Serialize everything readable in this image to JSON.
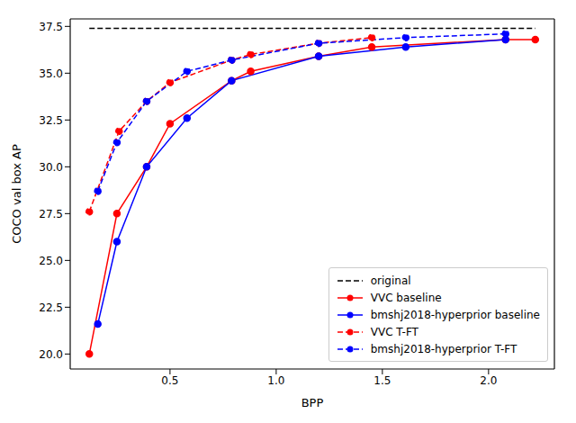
{
  "chart_data": {
    "type": "line",
    "x_label": "BPP",
    "y_label": "COCO val box AP",
    "xlim": [
      0.03,
      2.31
    ],
    "ylim": [
      19.2,
      37.9
    ],
    "xticks": [
      0.5,
      {
        "value": 1,
        "label": "1.0"
      },
      1.5,
      {
        "value": 2,
        "label": "2.0"
      }
    ],
    "yticks": [
      {
        "value": 20,
        "label": "20.0"
      },
      22.5,
      {
        "value": 25,
        "label": "25.0"
      },
      27.5,
      {
        "value": 30,
        "label": "30.0"
      },
      32.5,
      {
        "value": 35,
        "label": "35.0"
      },
      37.5
    ],
    "grid": "x",
    "legend": "lower right",
    "series": [
      {
        "name": "original",
        "color": "#000000",
        "line_style": "dashed",
        "marker": "none",
        "x": [
          0.12,
          2.22
        ],
        "values": [
          37.4,
          37.4
        ]
      },
      {
        "name": "VVC baseline",
        "color": "#ff0000",
        "line_style": "solid",
        "marker": "o",
        "x": [
          0.12,
          0.25,
          0.39,
          0.5,
          0.79,
          0.88,
          1.2,
          1.45,
          2.08,
          2.22
        ],
        "values": [
          20.0,
          27.5,
          30.0,
          32.3,
          34.6,
          35.1,
          35.9,
          36.4,
          36.8,
          36.8
        ]
      },
      {
        "name": "bmshj2018-hyperprior baseline",
        "color": "#0000ff",
        "line_style": "solid",
        "marker": "o",
        "x": [
          0.16,
          0.25,
          0.39,
          0.58,
          0.79,
          1.2,
          1.61,
          2.08
        ],
        "values": [
          21.6,
          26.0,
          30.0,
          32.6,
          34.6,
          35.9,
          36.4,
          36.8
        ]
      },
      {
        "name": "VVC T-FT",
        "color": "#ff0000",
        "line_style": "dashed",
        "marker": "o",
        "x": [
          0.12,
          0.26,
          0.39,
          0.5,
          0.79,
          0.88,
          1.2,
          1.45
        ],
        "values": [
          27.6,
          31.9,
          33.5,
          34.5,
          35.7,
          36.0,
          36.6,
          36.9
        ]
      },
      {
        "name": "bmshj2018-hyperprior T-FT",
        "color": "#0000ff",
        "line_style": "dashed",
        "marker": "o",
        "x": [
          0.16,
          0.25,
          0.39,
          0.58,
          0.79,
          1.2,
          1.61,
          2.08
        ],
        "values": [
          28.7,
          31.3,
          33.5,
          35.1,
          35.7,
          36.6,
          36.9,
          37.1
        ]
      }
    ]
  }
}
